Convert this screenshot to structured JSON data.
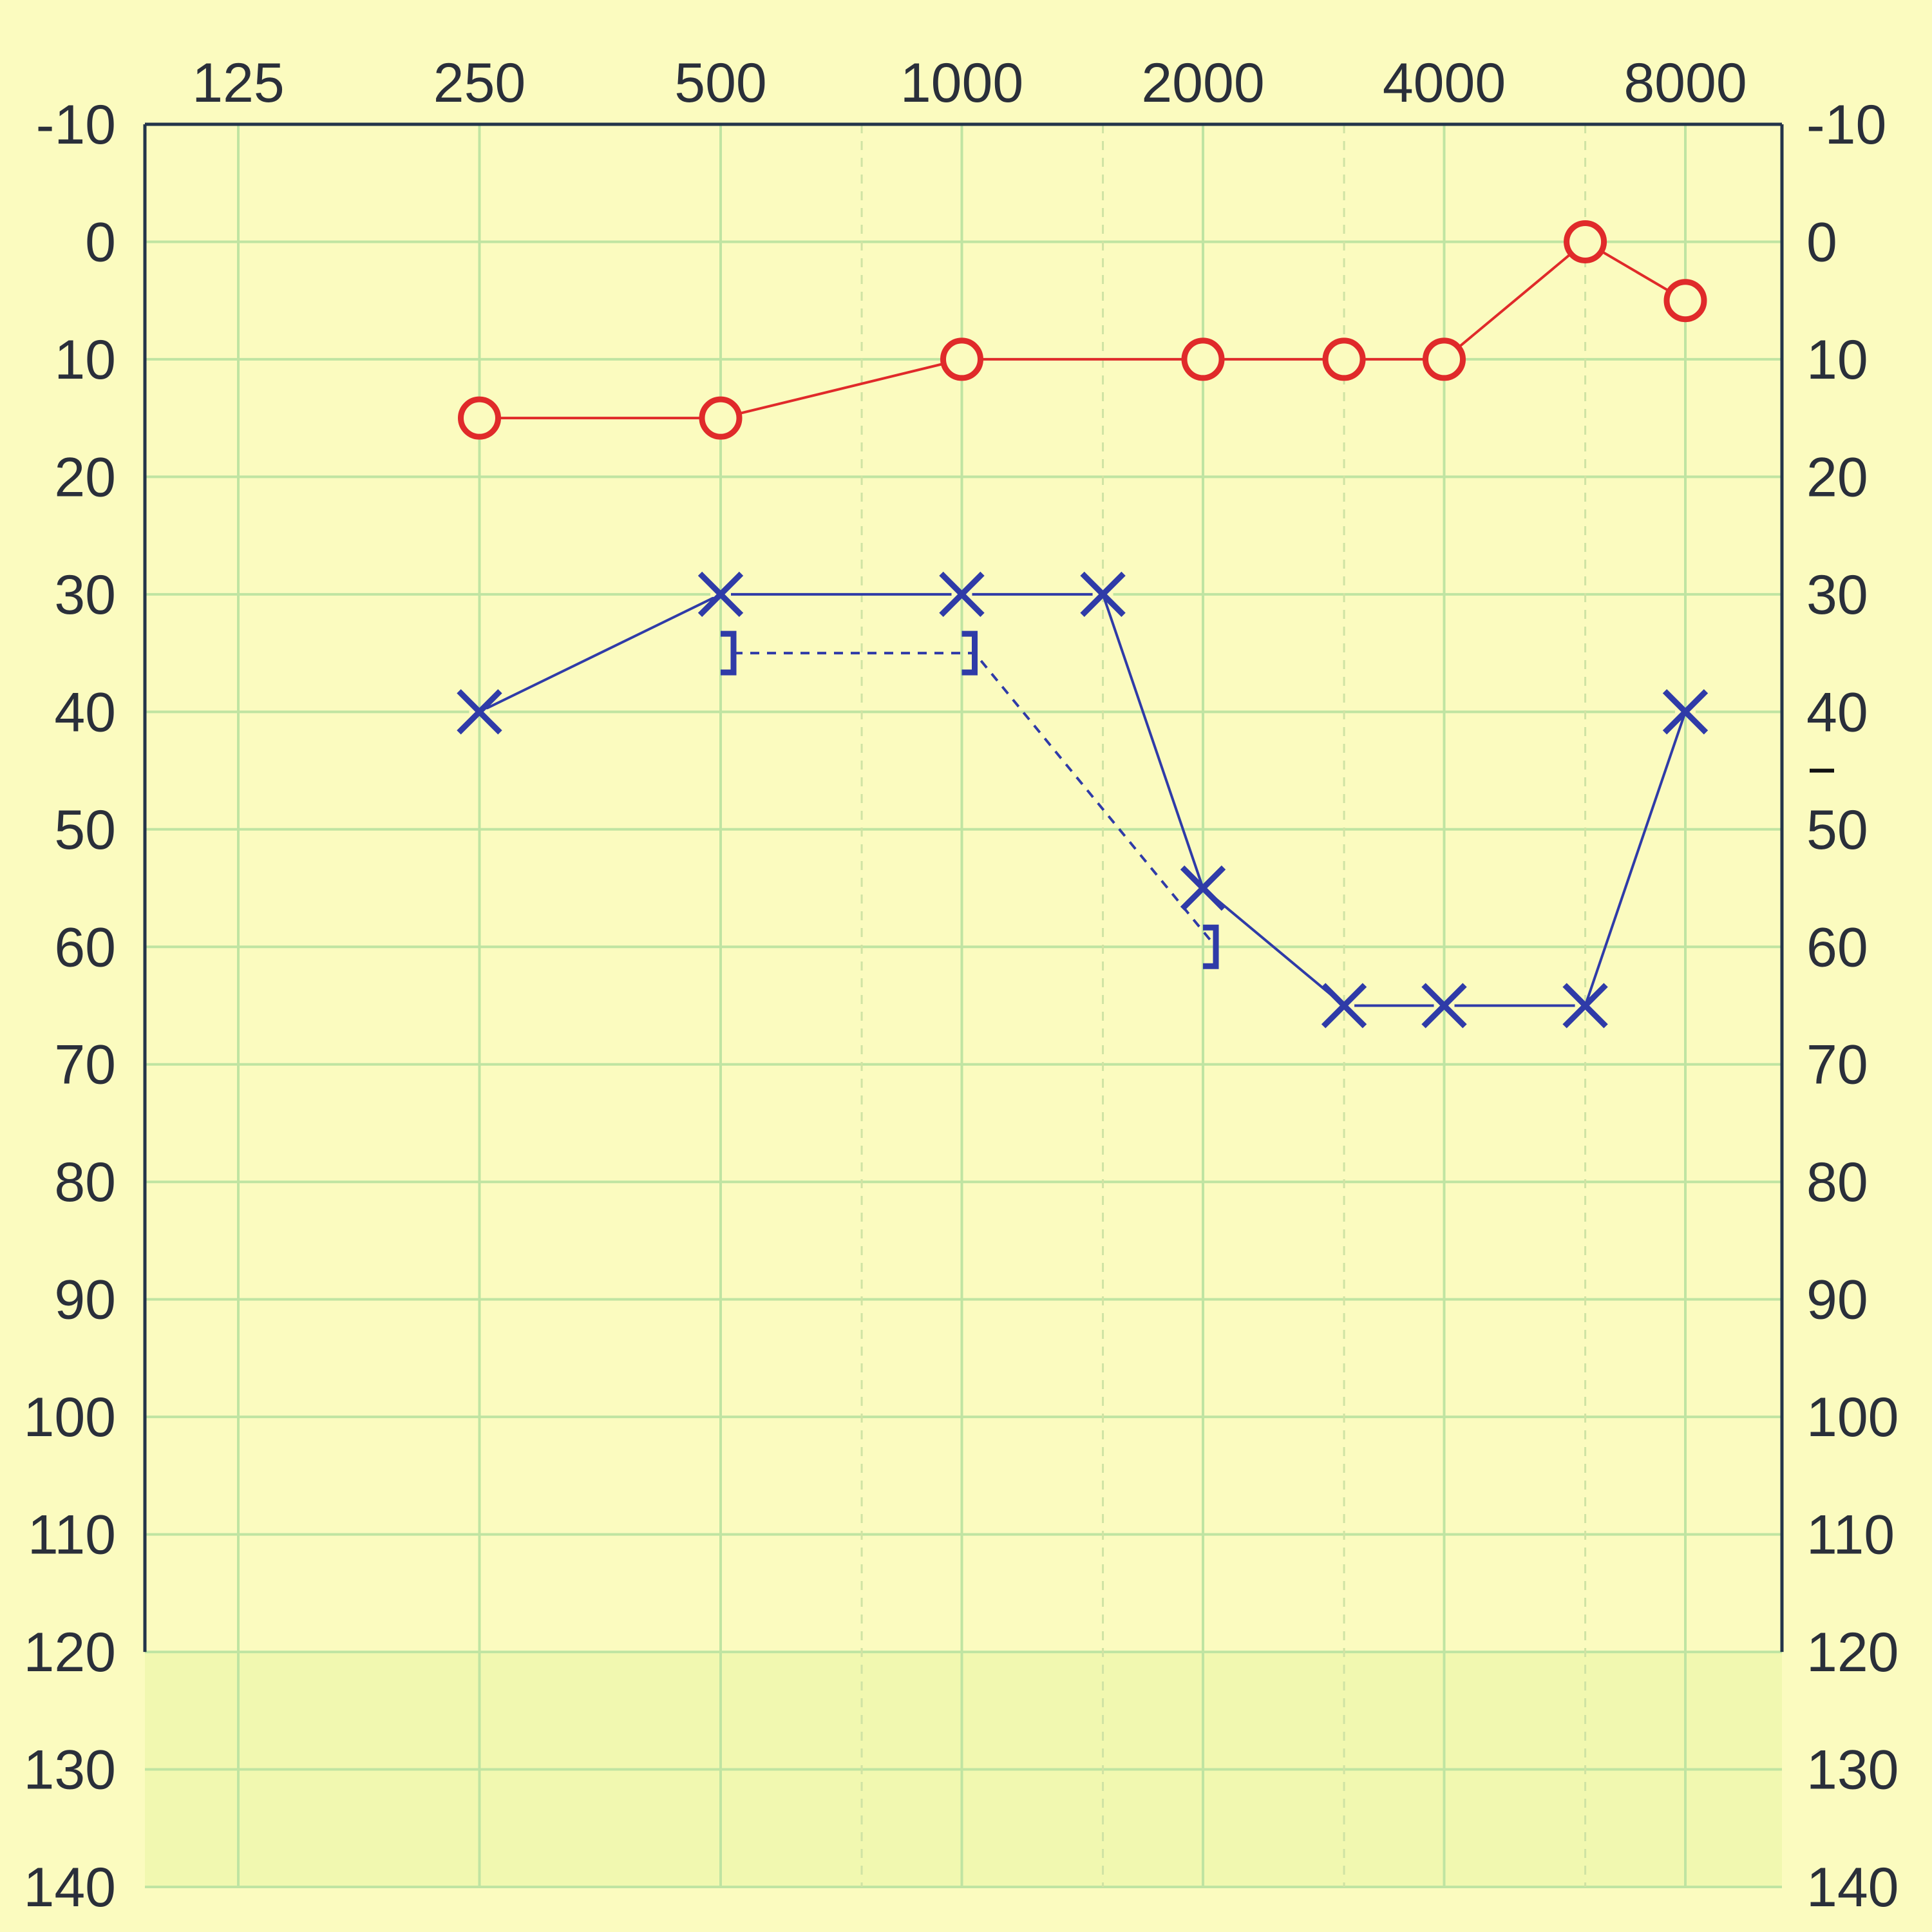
{
  "chart_data": {
    "type": "line",
    "title": "",
    "xlabel": "",
    "ylabel": "",
    "x_scale": "log2",
    "x_tick_labels": [
      "125",
      "250",
      "500",
      "1000",
      "2000",
      "4000",
      "8000"
    ],
    "x_ticks": [
      125,
      250,
      500,
      1000,
      2000,
      4000,
      8000
    ],
    "x_intermediate_grid": [
      750,
      1500,
      3000,
      6000
    ],
    "y_tick_labels": [
      "-10",
      "0",
      "10",
      "20",
      "30",
      "40",
      "50",
      "60",
      "70",
      "80",
      "90",
      "100",
      "110",
      "120",
      "130",
      "140"
    ],
    "ylim": [
      -10,
      140
    ],
    "y_inverted": true,
    "grid": true,
    "shaded_range": [
      120,
      140
    ],
    "series": [
      {
        "symbol": "circle",
        "line_style": "solid",
        "color": "#e02a2a",
        "points": [
          {
            "x": 250,
            "y": 15
          },
          {
            "x": 500,
            "y": 15
          },
          {
            "x": 1000,
            "y": 10
          },
          {
            "x": 2000,
            "y": 10
          },
          {
            "x": 3000,
            "y": 10
          },
          {
            "x": 4000,
            "y": 10
          },
          {
            "x": 6000,
            "y": 0
          },
          {
            "x": 8000,
            "y": 5
          }
        ]
      },
      {
        "symbol": "cross",
        "line_style": "solid",
        "color": "#2f3ba8",
        "points": [
          {
            "x": 250,
            "y": 40
          },
          {
            "x": 500,
            "y": 30
          },
          {
            "x": 1000,
            "y": 30
          },
          {
            "x": 1500,
            "y": 30
          },
          {
            "x": 2000,
            "y": 55
          },
          {
            "x": 3000,
            "y": 65
          },
          {
            "x": 4000,
            "y": 65
          },
          {
            "x": 6000,
            "y": 65
          },
          {
            "x": 8000,
            "y": 40
          }
        ]
      },
      {
        "symbol": "bracket-right",
        "line_style": "dashed",
        "color": "#2f3ba8",
        "points": [
          {
            "x": 500,
            "y": 35
          },
          {
            "x": 1000,
            "y": 35
          },
          {
            "x": 2000,
            "y": 60
          }
        ]
      }
    ],
    "right_axis_marker": {
      "y": 45
    }
  },
  "colors": {
    "background": "#fbfbbf",
    "grid_major": "#bfe4a2",
    "grid_minor": "#cfe3a4",
    "axis": "#23344a",
    "shaded": "#f1f8b0"
  }
}
